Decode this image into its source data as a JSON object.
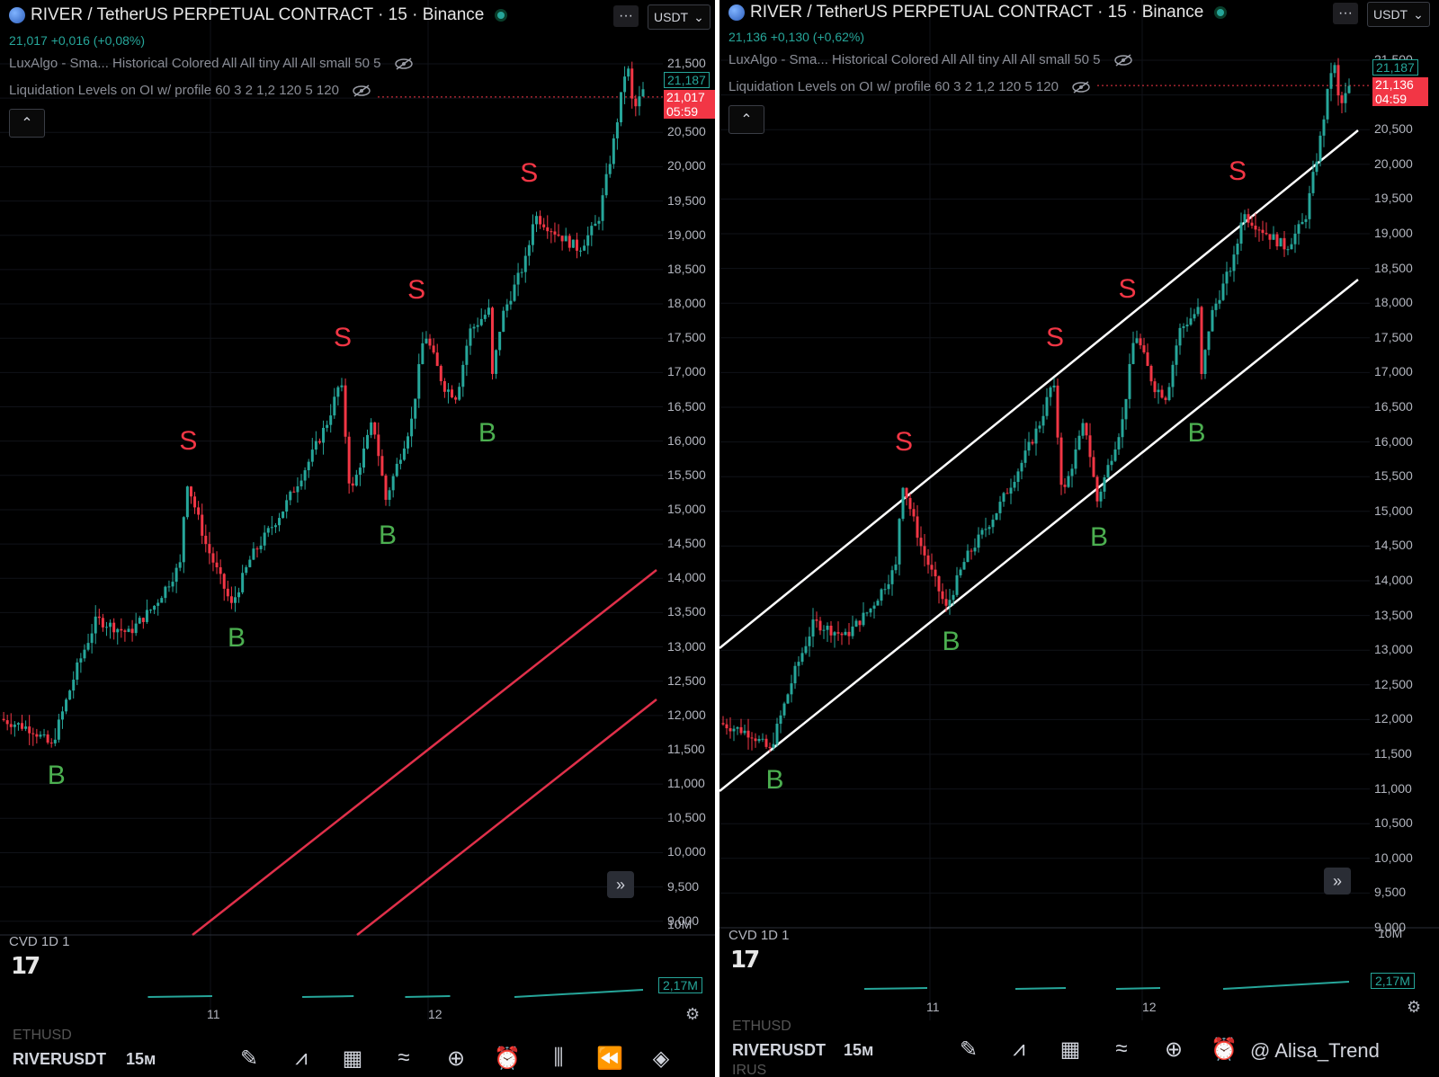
{
  "header": {
    "title": "RIVER / TetherUS PERPETUAL CONTRACT · 15 · Binance",
    "more_label": "···",
    "currency": "USDT"
  },
  "indicators": {
    "luxalgo": "LuxAlgo - Sma... Historical Colored All All tiny All All small 50 5",
    "liquidation": "Liquidation Levels on OI w/ profile 60 3 2 1,2 120 5 120"
  },
  "price_axis": [
    "21,500",
    "21,000",
    "20,500",
    "20,000",
    "19,500",
    "19,000",
    "18,500",
    "18,000",
    "17,500",
    "17,000",
    "16,500",
    "16,000",
    "15,500",
    "15,000",
    "14,500",
    "14,000",
    "13,500",
    "13,000",
    "12,500",
    "12,000",
    "11,500",
    "11,000",
    "10,500",
    "10,000",
    "9,500",
    "9,000"
  ],
  "left_panel": {
    "last_line": "21,017 +0,016 (+0,08%)",
    "high_tag": "21,187",
    "price_tag": "21,017",
    "countdown": "05:59",
    "signals": [
      {
        "label": "B"
      },
      {
        "label": "S"
      },
      {
        "label": "B"
      },
      {
        "label": "S"
      },
      {
        "label": "B"
      },
      {
        "label": "S"
      },
      {
        "label": "B"
      },
      {
        "label": "S"
      }
    ]
  },
  "right_panel": {
    "last_line": "21,136 +0,130 (+0,62%)",
    "high_tag": "21,187",
    "price_tag": "21,136",
    "countdown": "04:59",
    "signals": [
      {
        "label": "B"
      },
      {
        "label": "S"
      },
      {
        "label": "B"
      },
      {
        "label": "S"
      },
      {
        "label": "B"
      },
      {
        "label": "S"
      },
      {
        "label": "B"
      },
      {
        "label": "S"
      }
    ]
  },
  "cvd": {
    "label": "CVD 1D 1",
    "axis_top": "10M",
    "value_tag": "2,17M"
  },
  "time_axis": [
    "11",
    "12"
  ],
  "footer": {
    "ghost_top": "ETHUSD",
    "symbol": "RIVERUSDT",
    "timeframe": "15м",
    "ghost_bottom": "IRUS",
    "watermark": "@ Alisa_Trend"
  },
  "colors": {
    "up": "#26a69a",
    "down": "#f23645",
    "buy_label": "#4caf50",
    "sell_label": "#f23645",
    "channel_left": "#e0304a",
    "channel_right": "#ffffff"
  },
  "icons": [
    "logo-icon",
    "live-dot-icon",
    "eye-off-icon",
    "chevron-up-icon",
    "fast-forward-icon",
    "gear-icon",
    "pen-icon",
    "indicators-icon",
    "grid-icon",
    "drawings-icon",
    "plus-circle-icon",
    "alert-clock-icon",
    "candles-icon",
    "replay-icon",
    "layers-icon"
  ]
}
